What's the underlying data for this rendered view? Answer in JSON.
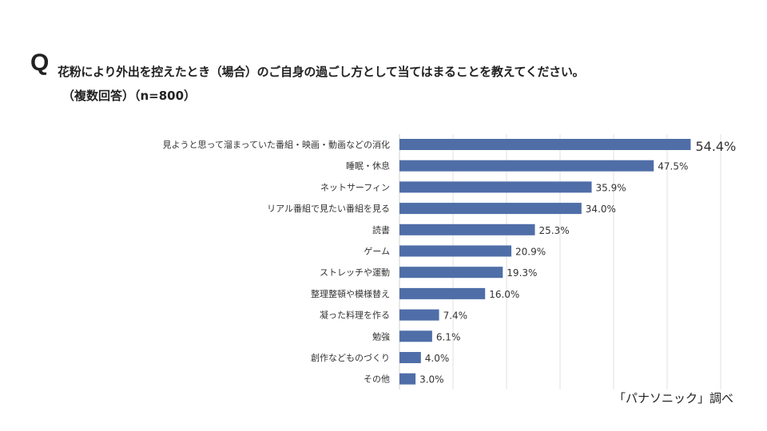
{
  "question_mark": "Q",
  "title": "花粉により外出を控えたとき（場合）のご自身の過ごし方として当てはまることを教えてください。",
  "subtitle": "（複数回答）（n=800）",
  "source": "「パナソニック」調べ",
  "chart_data": {
    "type": "bar",
    "orientation": "horizontal",
    "categories": [
      "見ようと思って溜まっていた番組・映画・動画などの消化",
      "睡眠・休息",
      "ネットサーフィン",
      "リアル番組で見たい番組を見る",
      "読書",
      "ゲーム",
      "ストレッチや運動",
      "整理整頓や模様替え",
      "凝った料理を作る",
      "勉強",
      "創作などものづくり",
      "その他"
    ],
    "values": [
      54.4,
      47.5,
      35.9,
      34.0,
      25.3,
      20.9,
      19.3,
      16.0,
      7.4,
      6.1,
      4.0,
      3.0
    ],
    "data_labels": [
      "54.4%",
      "47.5%",
      "35.9%",
      "34.0%",
      "25.3%",
      "20.9%",
      "19.3%",
      "16.0%",
      "7.4%",
      "6.1%",
      "4.0%",
      "3.0%"
    ],
    "unit": "%",
    "xlim": [
      0,
      60
    ],
    "grid": true,
    "bar_color": "#4f6ea8"
  }
}
